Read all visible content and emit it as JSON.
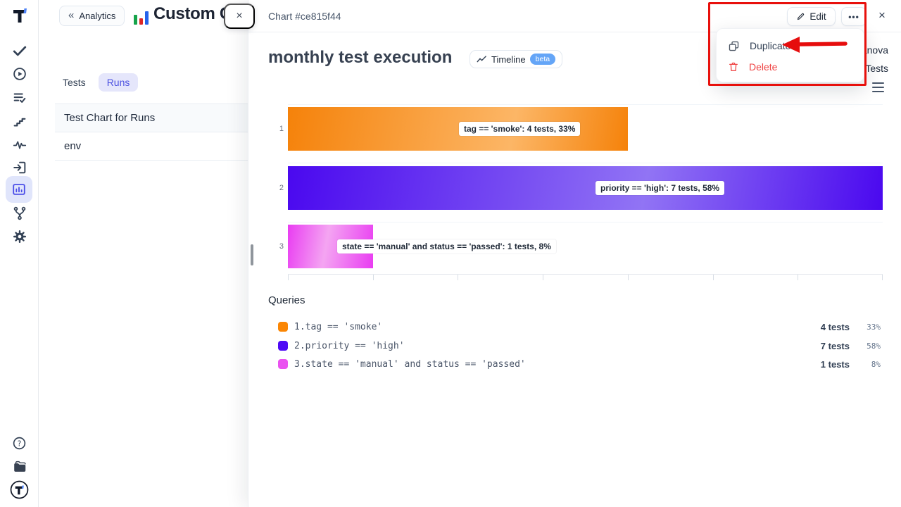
{
  "colors": {
    "accent": "#4f46e5",
    "accent_bg": "#e0e5fb",
    "annotation_red": "#e8100c",
    "delete_red": "#ef4444",
    "beta_blue": "#64a5f7"
  },
  "sidebar": {
    "active_icon": "charts",
    "icons": [
      "logo",
      "check",
      "play",
      "list-check",
      "steps",
      "pulse",
      "import",
      "charts",
      "branch",
      "settings"
    ],
    "bottom_icons": [
      "help",
      "docs",
      "logo-circle"
    ]
  },
  "page": {
    "back_button": {
      "chevrons": "«",
      "label": "Analytics"
    },
    "title": "Custom Charts",
    "close_label": "×",
    "tabs": [
      {
        "label": "Tests",
        "active": false
      },
      {
        "label": "Runs",
        "active": true
      }
    ],
    "list_items": [
      {
        "label": "Test Chart for Runs"
      },
      {
        "label": "env"
      }
    ]
  },
  "panel": {
    "breadcrumb": "Chart #ce815f44",
    "edit_button": "Edit",
    "more_button": "•••",
    "close_label": "×",
    "title": "monthly test execution",
    "timeline_button": "Timeline",
    "beta_badge": "beta",
    "clipped_text_1": "anova",
    "clipped_text_2": "Tests"
  },
  "context_menu": {
    "items": [
      {
        "label": "Duplicate",
        "icon": "copy-icon",
        "danger": false
      },
      {
        "label": "Delete",
        "icon": "trash-icon",
        "danger": true
      }
    ]
  },
  "chart_data": {
    "type": "bar",
    "orientation": "horizontal",
    "title": "monthly test execution",
    "categories": [
      "1",
      "2",
      "3"
    ],
    "values": [
      4,
      7,
      1
    ],
    "value_unit": "tests",
    "percents": [
      "33%",
      "58%",
      "8%"
    ],
    "bar_labels": [
      "tag == 'smoke': 4 tests, 33%",
      "priority == 'high': 7 tests, 58%",
      "state == 'manual' and status == 'passed': 1 tests, 8%"
    ],
    "bar_colors": [
      {
        "edge": "#f5820a",
        "mid": "#fcb666",
        "mid_pos": 66
      },
      {
        "edge": "#4a08ef",
        "mid": "#9174f4",
        "mid_pos": 60
      },
      {
        "edge": "#e93cf2",
        "mid": "#f4a5f2",
        "mid_pos": 45
      }
    ],
    "xlim": [
      0,
      7
    ],
    "x_tick_count": 8,
    "grid": true,
    "legend_position": "none"
  },
  "queries": {
    "heading": "Queries",
    "rows": [
      {
        "index": "1.",
        "query": "tag == 'smoke'",
        "color": "#fb8604",
        "tests": "4 tests",
        "percent": "33%"
      },
      {
        "index": "2.",
        "query": "priority == 'high'",
        "color": "#4e0af5",
        "tests": "7 tests",
        "percent": "58%"
      },
      {
        "index": "3.",
        "query": "state == 'manual' and status == 'passed'",
        "color": "#ea52f0",
        "tests": "1 tests",
        "percent": "8%"
      }
    ]
  }
}
